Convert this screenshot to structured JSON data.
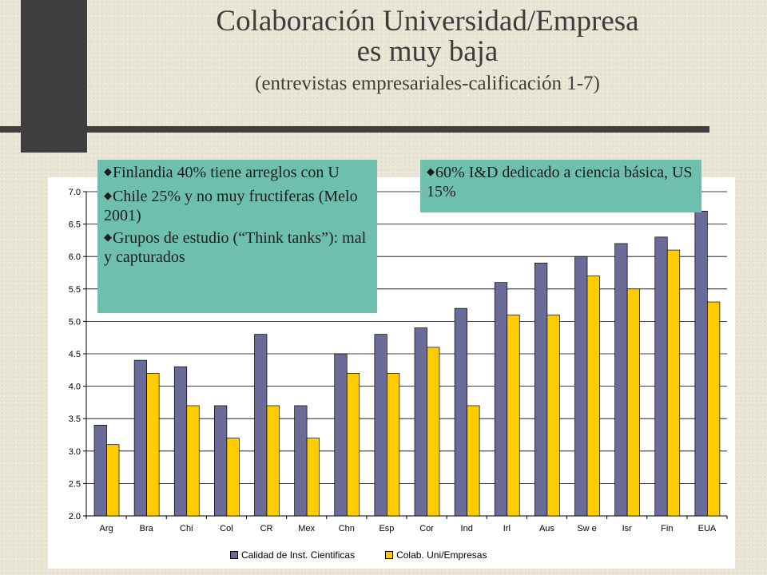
{
  "slide": {
    "title_line1": "Colaboración Universidad/Empresa",
    "title_line2": "es muy baja",
    "subtitle": "(entrevistas empresariales-calificación 1-7)"
  },
  "notes_left": [
    "Finlandia 40% tiene arreglos con U",
    "Chile 25% y no  muy fructiferas (Melo 2001)",
    "Grupos de estudio (“Think tanks”): mal y capturados"
  ],
  "notes_right": [
    "60% I&D dedicado a ciencia básica, US 15%"
  ],
  "bullet_glyph": "◆",
  "colors": {
    "series1": "#6b6b99",
    "series2": "#ffcc00",
    "box": "#6fbfae"
  },
  "chart_data": {
    "type": "bar",
    "title": "",
    "xlabel": "",
    "ylabel": "",
    "ylim": [
      2.0,
      7.0
    ],
    "ytick_step": 0.5,
    "grid": true,
    "legend_position": "bottom",
    "categories": [
      "Arg",
      "Bra",
      "Chi",
      "Col",
      "CR",
      "Mex",
      "Chn",
      "Esp",
      "Cor",
      "Ind",
      "Irl",
      "Aus",
      "Sw e",
      "Isr",
      "Fin",
      "EUA"
    ],
    "series": [
      {
        "name": "Calidad de Inst. Cientificas",
        "values": [
          3.4,
          4.4,
          4.3,
          3.7,
          4.8,
          3.7,
          4.5,
          4.8,
          4.9,
          5.2,
          5.6,
          5.9,
          6.0,
          6.2,
          6.3,
          6.7
        ]
      },
      {
        "name": "Colab. Uni/Empresas",
        "values": [
          3.1,
          4.2,
          3.7,
          3.2,
          3.7,
          3.2,
          4.2,
          4.2,
          4.6,
          3.7,
          5.1,
          5.1,
          5.7,
          5.5,
          6.1,
          5.3
        ]
      }
    ]
  }
}
